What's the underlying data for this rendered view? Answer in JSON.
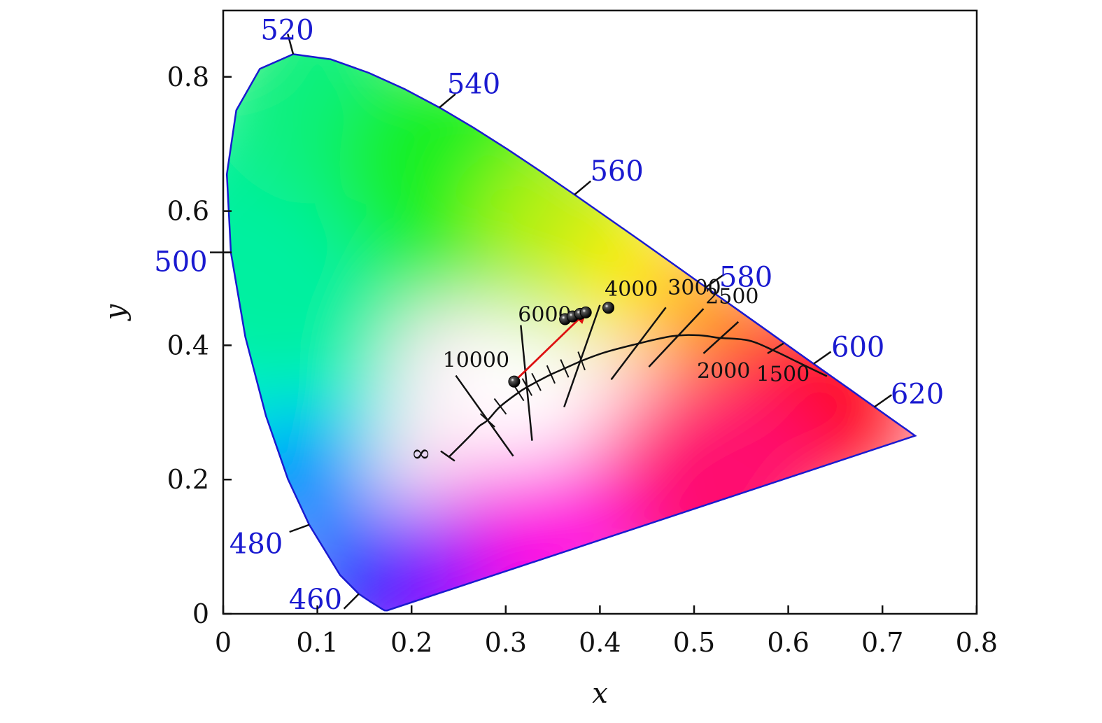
{
  "chart_data": {
    "type": "scatter",
    "xlabel": "x",
    "ylabel": "y",
    "xlim": [
      0,
      0.8
    ],
    "ylim": [
      0,
      0.9
    ],
    "x_ticks": [
      {
        "value": 0,
        "label": "0"
      },
      {
        "value": 0.1,
        "label": "0.1"
      },
      {
        "value": 0.2,
        "label": "0.2"
      },
      {
        "value": 0.3,
        "label": "0.3"
      },
      {
        "value": 0.4,
        "label": "0.4"
      },
      {
        "value": 0.5,
        "label": "0.5"
      },
      {
        "value": 0.6,
        "label": "0.6"
      },
      {
        "value": 0.7,
        "label": "0.7"
      },
      {
        "value": 0.8,
        "label": "0.8"
      }
    ],
    "y_ticks": [
      {
        "value": 0,
        "label": "0"
      },
      {
        "value": 0.2,
        "label": "0.2"
      },
      {
        "value": 0.4,
        "label": "0.4"
      },
      {
        "value": 0.6,
        "label": "0.6"
      },
      {
        "value": 0.8,
        "label": "0.8"
      }
    ],
    "spectral_locus": [
      [
        0.1741,
        0.005
      ],
      [
        0.1714,
        0.0051
      ],
      [
        0.1689,
        0.0069
      ],
      [
        0.1644,
        0.0109
      ],
      [
        0.1566,
        0.0177
      ],
      [
        0.144,
        0.0297
      ],
      [
        0.1241,
        0.0578
      ],
      [
        0.0913,
        0.1327
      ],
      [
        0.0687,
        0.2007
      ],
      [
        0.0454,
        0.295
      ],
      [
        0.0235,
        0.4127
      ],
      [
        0.0082,
        0.5384
      ],
      [
        0.0039,
        0.6548
      ],
      [
        0.0139,
        0.7502
      ],
      [
        0.0389,
        0.812
      ],
      [
        0.0743,
        0.8338
      ],
      [
        0.1142,
        0.8262
      ],
      [
        0.1547,
        0.8059
      ],
      [
        0.1929,
        0.7816
      ],
      [
        0.2296,
        0.7543
      ],
      [
        0.2658,
        0.7243
      ],
      [
        0.3016,
        0.6923
      ],
      [
        0.3373,
        0.6589
      ],
      [
        0.3731,
        0.6245
      ],
      [
        0.4087,
        0.5896
      ],
      [
        0.4441,
        0.5547
      ],
      [
        0.4788,
        0.5202
      ],
      [
        0.5125,
        0.4866
      ],
      [
        0.5448,
        0.4544
      ],
      [
        0.5752,
        0.4242
      ],
      [
        0.6029,
        0.3965
      ],
      [
        0.627,
        0.3725
      ],
      [
        0.6482,
        0.3514
      ],
      [
        0.6658,
        0.334
      ],
      [
        0.6801,
        0.3197
      ],
      [
        0.6915,
        0.3083
      ],
      [
        0.7006,
        0.2993
      ],
      [
        0.7079,
        0.292
      ],
      [
        0.714,
        0.2859
      ],
      [
        0.719,
        0.2809
      ],
      [
        0.723,
        0.277
      ],
      [
        0.726,
        0.274
      ],
      [
        0.7283,
        0.2717
      ],
      [
        0.73,
        0.27
      ],
      [
        0.7347,
        0.2653
      ]
    ],
    "wavelength_markers": [
      {
        "label": "460",
        "x": 0.144,
        "y": 0.0297
      },
      {
        "label": "480",
        "x": 0.0913,
        "y": 0.1327
      },
      {
        "label": "500",
        "x": 0.0082,
        "y": 0.5384
      },
      {
        "label": "520",
        "x": 0.0743,
        "y": 0.8338
      },
      {
        "label": "540",
        "x": 0.2296,
        "y": 0.7543
      },
      {
        "label": "560",
        "x": 0.3731,
        "y": 0.6245
      },
      {
        "label": "580",
        "x": 0.5125,
        "y": 0.4866
      },
      {
        "label": "600",
        "x": 0.627,
        "y": 0.3725
      },
      {
        "label": "620",
        "x": 0.6915,
        "y": 0.3083
      }
    ],
    "planckian_locus": [
      [
        0.2399,
        0.2341
      ],
      [
        0.2528,
        0.252
      ],
      [
        0.2637,
        0.2675
      ],
      [
        0.272,
        0.2798
      ],
      [
        0.2807,
        0.2883
      ],
      [
        0.2942,
        0.309
      ],
      [
        0.3136,
        0.3297
      ],
      [
        0.3227,
        0.3378
      ],
      [
        0.3325,
        0.3454
      ],
      [
        0.348,
        0.3566
      ],
      [
        0.3625,
        0.3656
      ],
      [
        0.3805,
        0.3768
      ],
      [
        0.4041,
        0.389
      ],
      [
        0.4355,
        0.4008
      ],
      [
        0.4764,
        0.4136
      ],
      [
        0.505,
        0.415
      ],
      [
        0.5262,
        0.4112
      ],
      [
        0.558,
        0.4072
      ],
      [
        0.585,
        0.392
      ],
      [
        0.61,
        0.375
      ],
      [
        0.641,
        0.354
      ]
    ],
    "isotherms": [
      {
        "label": "10000",
        "from": [
          0.247,
          0.355
        ],
        "to": [
          0.308,
          0.235
        ]
      },
      {
        "label": "6000",
        "from": [
          0.316,
          0.43
        ],
        "to": [
          0.328,
          0.258
        ]
      },
      {
        "label": "4000",
        "from": [
          0.4,
          0.46
        ],
        "to": [
          0.362,
          0.308
        ]
      },
      {
        "label": "3000",
        "from": [
          0.47,
          0.4565
        ],
        "to": [
          0.412,
          0.349
        ]
      },
      {
        "label": "2500",
        "from": [
          0.51,
          0.4545
        ],
        "to": [
          0.452,
          0.368
        ]
      },
      {
        "label": "2000",
        "from": [
          0.547,
          0.435
        ],
        "to": [
          0.51,
          0.388
        ]
      },
      {
        "label": "1500",
        "from": [
          0.595,
          0.403
        ],
        "to": [
          0.578,
          0.388
        ]
      }
    ],
    "cct_labels": [
      {
        "label": "10000",
        "x": 0.233,
        "y": 0.378
      },
      {
        "label": "6000",
        "x": 0.313,
        "y": 0.446
      },
      {
        "label": "4000",
        "x": 0.405,
        "y": 0.484
      },
      {
        "label": "3000",
        "x": 0.472,
        "y": 0.486
      },
      {
        "label": "2500",
        "x": 0.512,
        "y": 0.473
      },
      {
        "label": "2000",
        "x": 0.503,
        "y": 0.362
      },
      {
        "label": "1500",
        "x": 0.566,
        "y": 0.357
      }
    ],
    "infinity_label": "∞",
    "series": [
      {
        "points": [
          [
            0.309,
            0.346
          ],
          [
            0.363,
            0.439
          ],
          [
            0.371,
            0.443
          ],
          [
            0.379,
            0.447
          ],
          [
            0.385,
            0.449
          ],
          [
            0.409,
            0.456
          ]
        ]
      }
    ],
    "arrow": {
      "from": [
        0.309,
        0.346
      ],
      "to": [
        0.385,
        0.449
      ],
      "color": "#dd1111"
    },
    "colors": {
      "locus": "#1a1ad0",
      "wavelength_text": "#1a1ad0",
      "points": "#111111"
    }
  }
}
